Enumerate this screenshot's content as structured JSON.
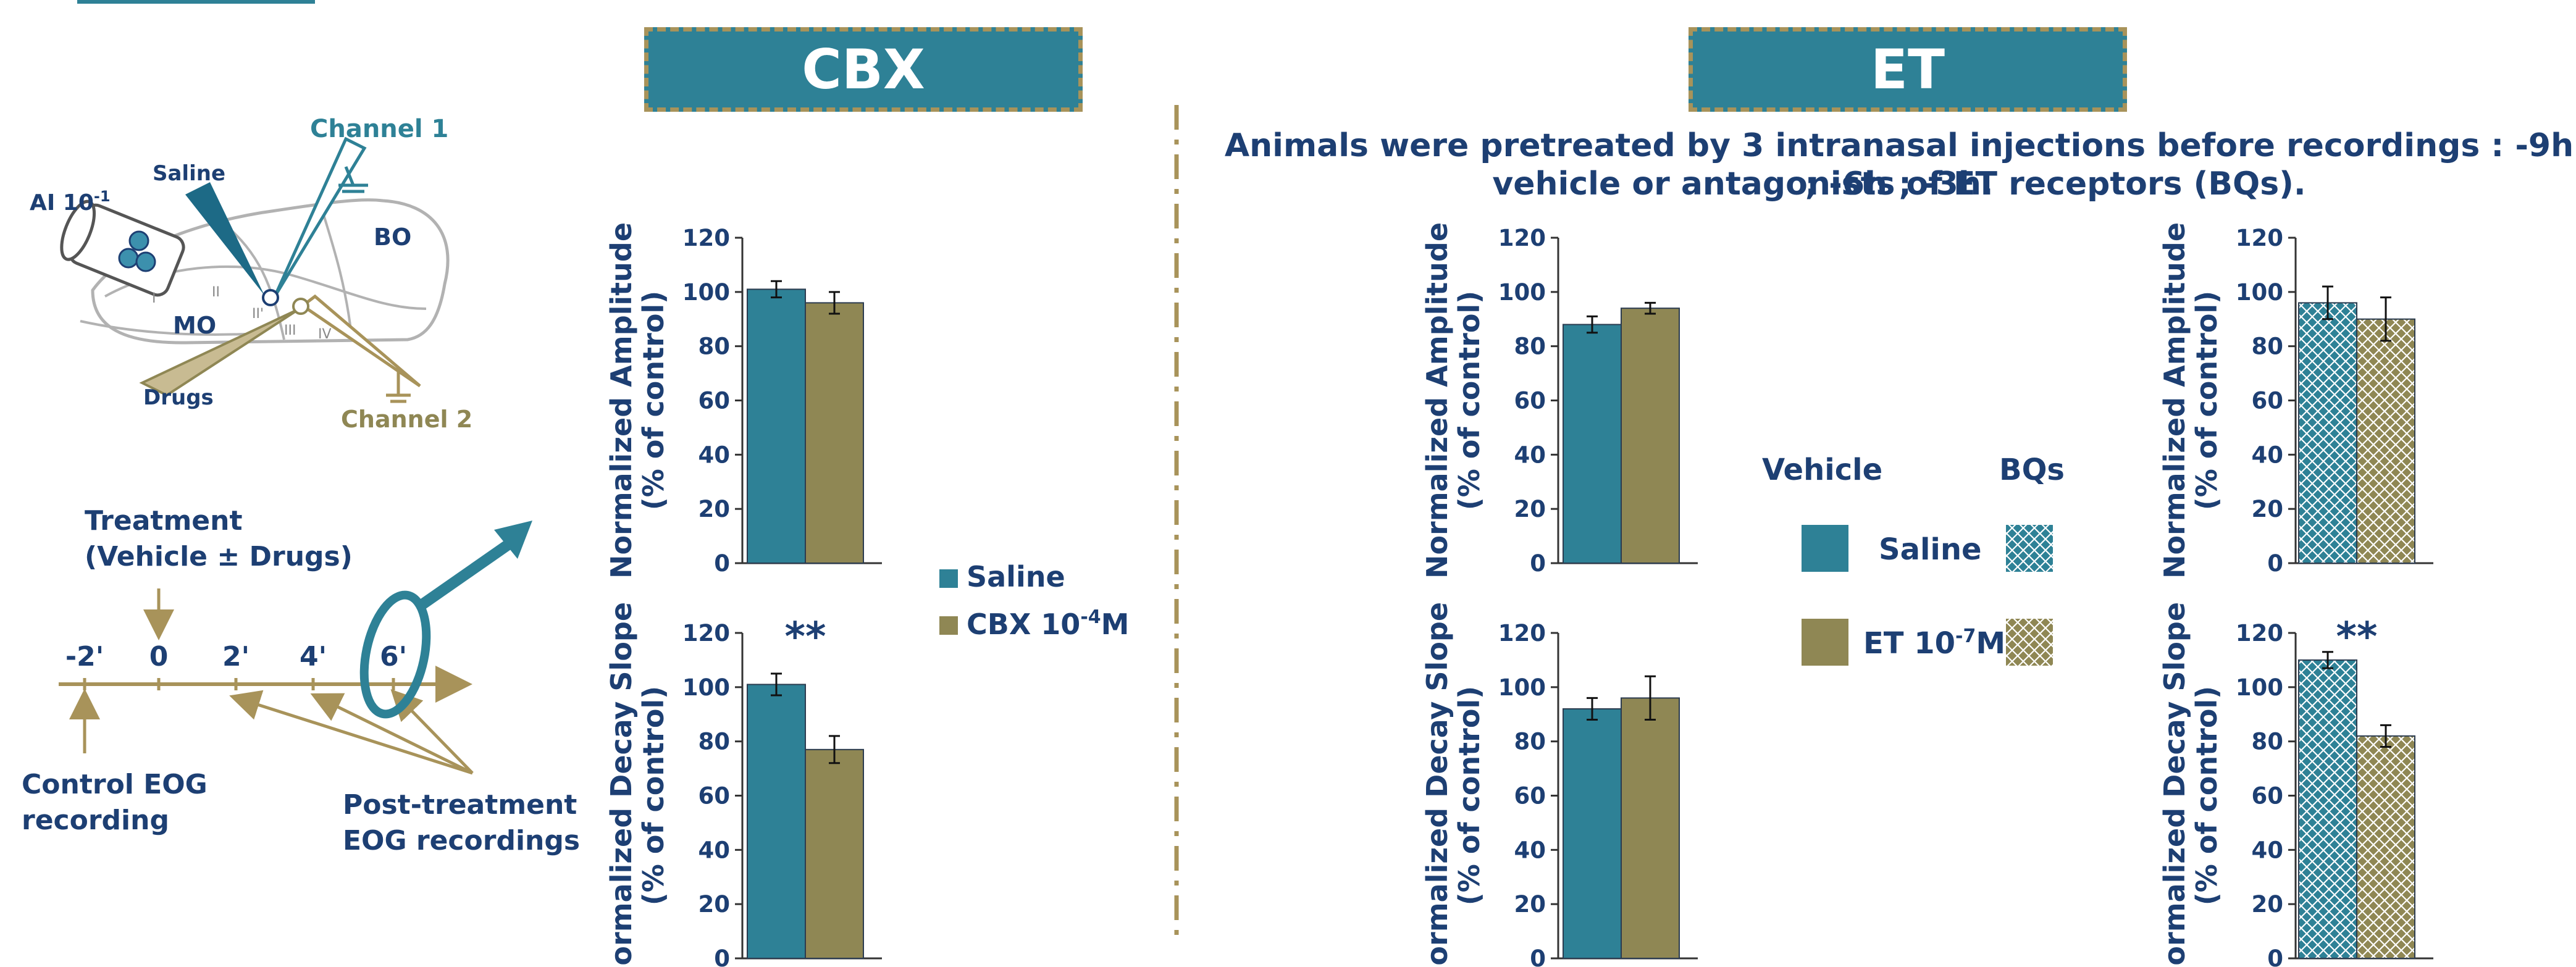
{
  "colors": {
    "navy": "#1d3f73",
    "teal": "#2e8196",
    "olive": "#8f8754",
    "tan": "#a8935a",
    "tealLight": "#3c90ad"
  },
  "headers": {
    "cbx": "CBX",
    "et": "ET"
  },
  "caption": {
    "line1": "Animals were pretreated by 3 intranasal injections before recordings : -9h ; -6h ; -3h.",
    "line2": "vehicle or antagonists of ET receptors (BQs)."
  },
  "schematic": {
    "ai": "AI 10",
    "ai_sup": "-1",
    "saline": "Saline",
    "channel1": "Channel 1",
    "bo": "BO",
    "mo": "MO",
    "drugs": "Drugs",
    "channel2": "Channel 2",
    "layers": [
      "I",
      "II",
      "II'",
      "III",
      "IV"
    ]
  },
  "timeline": {
    "treatment_line1": "Treatment",
    "treatment_line2": "(Vehicle ± Drugs)",
    "ticks": [
      "-2'",
      "0",
      "2'",
      "4'",
      "6'"
    ],
    "control_line1": "Control EOG",
    "control_line2": "recording",
    "post_line1": "Post-treatment",
    "post_line2": "EOG recordings"
  },
  "legend_cbx": {
    "saline": "Saline",
    "cbx": "CBX 10",
    "cbx_sup": "-4",
    "cbx_unit": "M"
  },
  "legend_et": {
    "vehicle": "Vehicle",
    "bqs": "BQs",
    "saline": "Saline",
    "et": "ET 10",
    "et_sup": "-7",
    "et_unit": "M"
  },
  "chart_data": [
    {
      "id": "cbx-amplitude",
      "type": "bar",
      "categories": [
        "Saline",
        "CBX 10-4M"
      ],
      "values": [
        101,
        96
      ],
      "errors": [
        3,
        4
      ],
      "ylabel": [
        "Normalized Amplitude",
        "(% of control)"
      ],
      "ylim": [
        0,
        120
      ],
      "yticks": [
        "0",
        "20",
        "40",
        "60",
        "80",
        "100",
        "120"
      ],
      "significance": "",
      "pattern": false
    },
    {
      "id": "cbx-decay",
      "type": "bar",
      "categories": [
        "Saline",
        "CBX 10-4M"
      ],
      "values": [
        101,
        77
      ],
      "errors": [
        4,
        5
      ],
      "ylabel": [
        "Normalized Decay Slope",
        "(% of control)"
      ],
      "ylim": [
        0,
        120
      ],
      "yticks": [
        "0",
        "20",
        "40",
        "60",
        "80",
        "100",
        "120"
      ],
      "significance": "**",
      "pattern": false
    },
    {
      "id": "et-vehicle-amplitude",
      "type": "bar",
      "categories": [
        "Saline",
        "ET 10-7M"
      ],
      "values": [
        88,
        94
      ],
      "errors": [
        3,
        2
      ],
      "ylabel": [
        "Normalized Amplitude",
        "(% of control)"
      ],
      "ylim": [
        0,
        120
      ],
      "yticks": [
        "0",
        "20",
        "40",
        "60",
        "80",
        "100",
        "120"
      ],
      "significance": "",
      "pattern": false
    },
    {
      "id": "et-vehicle-decay",
      "type": "bar",
      "categories": [
        "Saline",
        "ET 10-7M"
      ],
      "values": [
        92,
        96
      ],
      "errors": [
        4,
        8
      ],
      "ylabel": [
        "Normalized Decay Slope",
        "(% of control)"
      ],
      "ylim": [
        0,
        120
      ],
      "yticks": [
        "0",
        "20",
        "40",
        "60",
        "80",
        "100",
        "120"
      ],
      "significance": "",
      "pattern": false
    },
    {
      "id": "et-bq-amplitude",
      "type": "bar",
      "categories": [
        "Saline",
        "ET 10-7M"
      ],
      "values": [
        96,
        90
      ],
      "errors": [
        6,
        8
      ],
      "ylabel": [
        "Normalized Amplitude",
        "(% of control)"
      ],
      "ylim": [
        0,
        120
      ],
      "yticks": [
        "0",
        "20",
        "40",
        "60",
        "80",
        "100",
        "120"
      ],
      "significance": "",
      "pattern": true
    },
    {
      "id": "et-bq-decay",
      "type": "bar",
      "categories": [
        "Saline",
        "ET 10-7M"
      ],
      "values": [
        110,
        82
      ],
      "errors": [
        3,
        4
      ],
      "ylabel": [
        "Normalized Decay Slope",
        "(% of control)"
      ],
      "ylim": [
        0,
        120
      ],
      "yticks": [
        "0",
        "20",
        "40",
        "60",
        "80",
        "100",
        "120"
      ],
      "significance": "**",
      "pattern": true
    }
  ]
}
